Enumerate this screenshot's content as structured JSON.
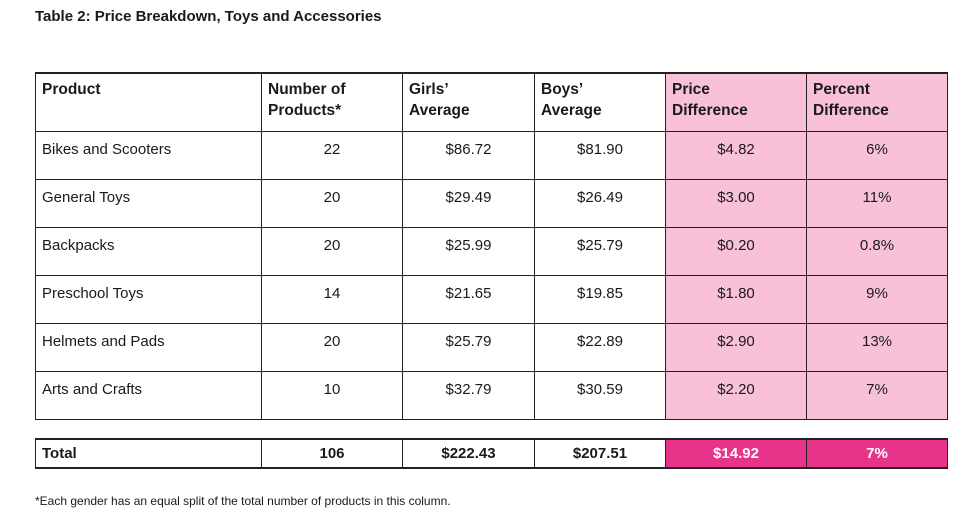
{
  "title": "Table 2: Price Breakdown, Toys and Accessories",
  "headers": {
    "product": "Product",
    "count_line1": "Number of",
    "count_line2": "Products*",
    "girls_line1": "Girls’",
    "girls_line2": "Average",
    "boys_line1": "Boys’",
    "boys_line2": "Average",
    "diff_line1": "Price",
    "diff_line2": "Difference",
    "pct_line1": "Percent",
    "pct_line2": "Difference"
  },
  "rows": [
    {
      "product": "Bikes and Scooters",
      "count": "22",
      "girls": "$86.72",
      "boys": "$81.90",
      "diff": "$4.82",
      "pct": "6%"
    },
    {
      "product": "General Toys",
      "count": "20",
      "girls": "$29.49",
      "boys": "$26.49",
      "diff": "$3.00",
      "pct": "11%"
    },
    {
      "product": "Backpacks",
      "count": "20",
      "girls": "$25.99",
      "boys": "$25.79",
      "diff": "$0.20",
      "pct": "0.8%"
    },
    {
      "product": "Preschool Toys",
      "count": "14",
      "girls": "$21.65",
      "boys": "$19.85",
      "diff": "$1.80",
      "pct": "9%"
    },
    {
      "product": "Helmets and Pads",
      "count": "20",
      "girls": "$25.79",
      "boys": "$22.89",
      "diff": "$2.90",
      "pct": "13%"
    },
    {
      "product": "Arts and Crafts",
      "count": "10",
      "girls": "$32.79",
      "boys": "$30.59",
      "diff": "$2.20",
      "pct": "7%"
    }
  ],
  "total": {
    "product": "Total",
    "count": "106",
    "girls": "$222.43",
    "boys": "$207.51",
    "diff": "$14.92",
    "pct": "7%"
  },
  "footnote": "*Each gender has an equal split of the total number of products in this column.",
  "colors": {
    "highlight": "#f8c0d9",
    "total_highlight": "#e8338a"
  }
}
